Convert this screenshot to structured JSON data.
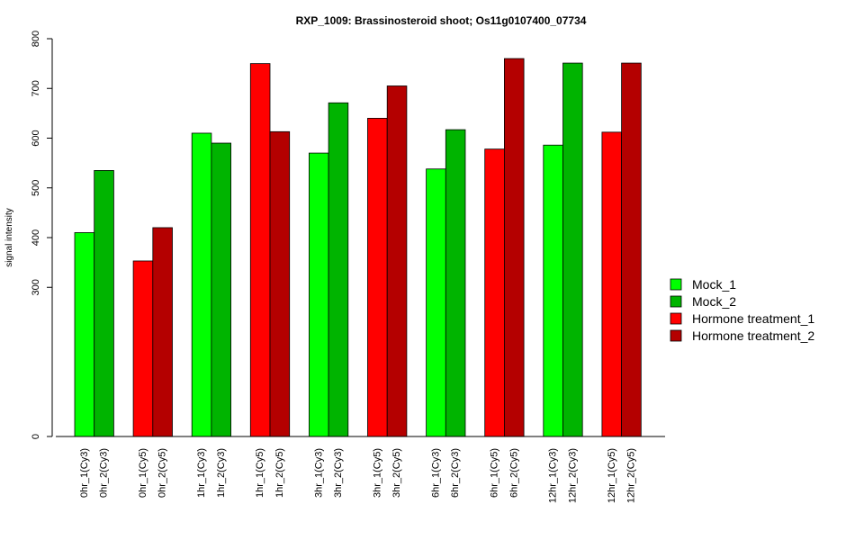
{
  "chart_data": {
    "type": "bar",
    "title": "RXP_1009: Brassinosteroid shoot; Os11g0107400_07734",
    "ylabel": "signal intensity",
    "xlabel": "",
    "ylim": [
      0,
      800
    ],
    "yticks": [
      0,
      300,
      400,
      500,
      600,
      700,
      800
    ],
    "grid": false,
    "legend_position": "right",
    "legend": [
      {
        "name": "Mock_1",
        "color": "#00ff00"
      },
      {
        "name": "Mock_2",
        "color": "#00b400"
      },
      {
        "name": "Hormone treatment_1",
        "color": "#ff0000"
      },
      {
        "name": "Hormone treatment_2",
        "color": "#b40000"
      }
    ],
    "bars": [
      {
        "label": "0hr_1(Cy3)",
        "value": 410,
        "color": "#00ff00"
      },
      {
        "label": "0hr_2(Cy3)",
        "value": 535,
        "color": "#00b400"
      },
      {
        "label": "0hr_1(Cy5)",
        "value": 353,
        "color": "#ff0000"
      },
      {
        "label": "0hr_2(Cy5)",
        "value": 420,
        "color": "#b40000"
      },
      {
        "label": "1hr_1(Cy3)",
        "value": 610,
        "color": "#00ff00"
      },
      {
        "label": "1hr_2(Cy3)",
        "value": 590,
        "color": "#00b400"
      },
      {
        "label": "1hr_1(Cy5)",
        "value": 750,
        "color": "#ff0000"
      },
      {
        "label": "1hr_2(Cy5)",
        "value": 613,
        "color": "#b40000"
      },
      {
        "label": "3hr_1(Cy3)",
        "value": 570,
        "color": "#00ff00"
      },
      {
        "label": "3hr_2(Cy3)",
        "value": 671,
        "color": "#00b400"
      },
      {
        "label": "3hr_1(Cy5)",
        "value": 640,
        "color": "#ff0000"
      },
      {
        "label": "3hr_2(Cy5)",
        "value": 705,
        "color": "#b40000"
      },
      {
        "label": "6hr_1(Cy3)",
        "value": 538,
        "color": "#00ff00"
      },
      {
        "label": "6hr_2(Cy3)",
        "value": 617,
        "color": "#00b400"
      },
      {
        "label": "6hr_1(Cy5)",
        "value": 578,
        "color": "#ff0000"
      },
      {
        "label": "6hr_2(Cy5)",
        "value": 760,
        "color": "#b40000"
      },
      {
        "label": "12hr_1(Cy3)",
        "value": 586,
        "color": "#00ff00"
      },
      {
        "label": "12hr_2(Cy3)",
        "value": 751,
        "color": "#00b400"
      },
      {
        "label": "12hr_1(Cy5)",
        "value": 612,
        "color": "#ff0000"
      },
      {
        "label": "12hr_2(Cy5)",
        "value": 751,
        "color": "#b40000"
      }
    ]
  }
}
